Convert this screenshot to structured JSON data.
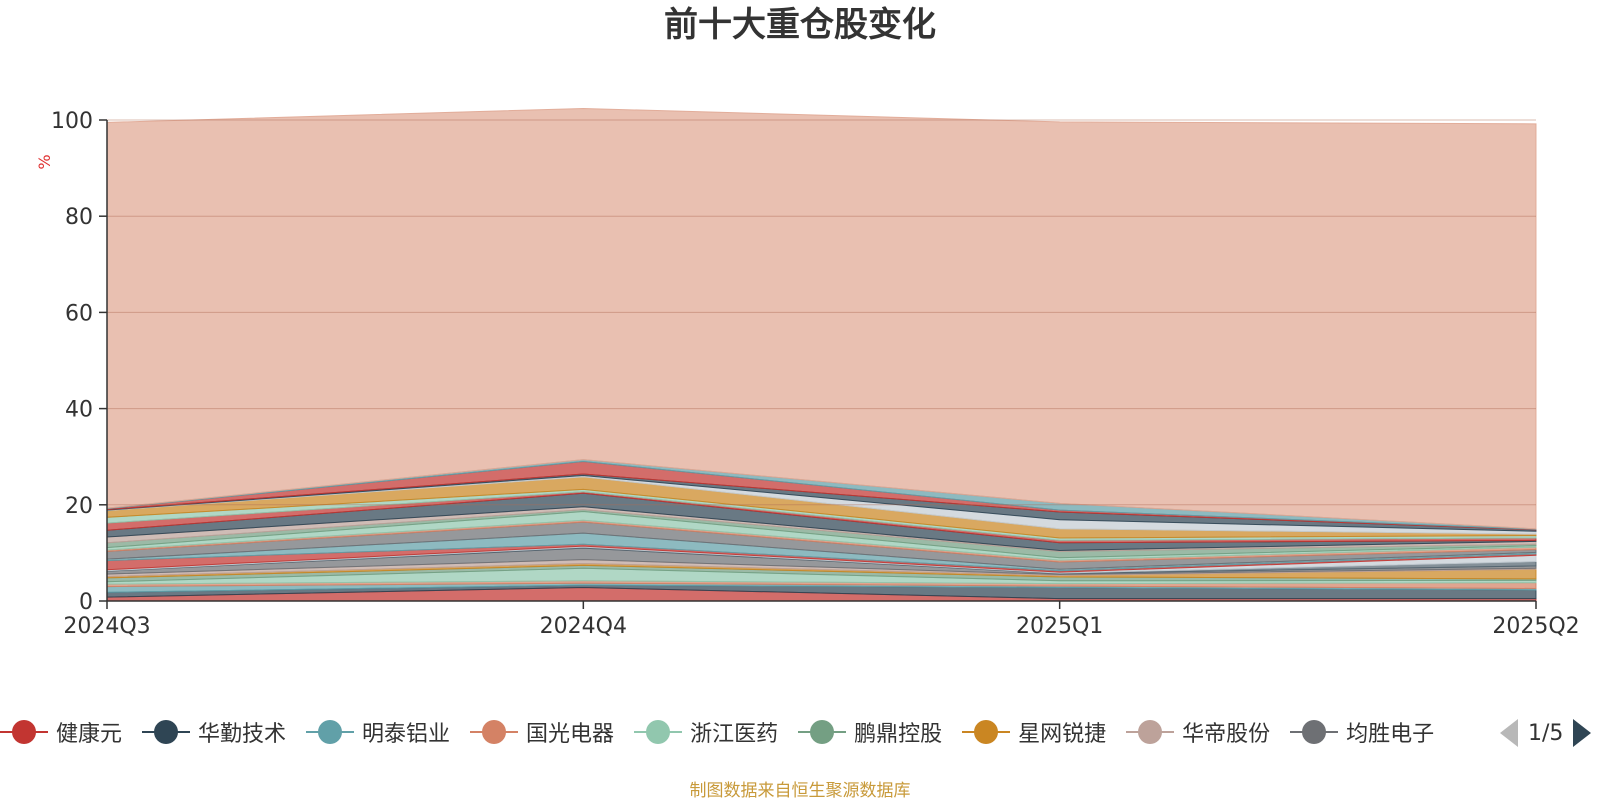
{
  "title": "前十大重仓股变化",
  "source_note": "制图数据来自恒生聚源数据库",
  "pager": {
    "text": "1/5"
  },
  "legend": [
    {
      "name": "健康元",
      "color": "#c23531"
    },
    {
      "name": "华勤技术",
      "color": "#2f4554"
    },
    {
      "name": "明泰铝业",
      "color": "#61a0a8"
    },
    {
      "name": "国光电器",
      "color": "#d48265"
    },
    {
      "name": "浙江医药",
      "color": "#91c7ae"
    },
    {
      "name": "鹏鼎控股",
      "color": "#749f83"
    },
    {
      "name": "星网锐捷",
      "color": "#ca8622"
    },
    {
      "name": "华帝股份",
      "color": "#bda29a"
    },
    {
      "name": "均胜电子",
      "color": "#6e7074"
    }
  ],
  "chart_data": {
    "type": "area",
    "stacked": true,
    "title": "前十大重仓股变化",
    "ylabel": "%",
    "ylim": [
      0,
      100
    ],
    "yticks": [
      "0",
      "20",
      "40",
      "60",
      "80",
      "100"
    ],
    "categories": [
      "2024Q3",
      "2024Q4",
      "2025Q1",
      "2025Q2"
    ],
    "grid": true,
    "legend_position": "bottom",
    "series": [
      {
        "name": "健康元",
        "color": "#c23531",
        "values": [
          0.8,
          2.8,
          0.5,
          0.5
        ]
      },
      {
        "name": "华勤技术",
        "color": "#2f4554",
        "values": [
          1.0,
          0.5,
          2.3,
          1.8
        ]
      },
      {
        "name": "明泰铝业",
        "color": "#61a0a8",
        "values": [
          1.2,
          0.4,
          0.3,
          0.3
        ]
      },
      {
        "name": "国光电器",
        "color": "#d48265",
        "values": [
          0.5,
          0.5,
          0.5,
          1.2
        ]
      },
      {
        "name": "浙江医药",
        "color": "#91c7ae",
        "values": [
          0.5,
          2.6,
          0.6,
          0.5
        ]
      },
      {
        "name": "鹏鼎控股",
        "color": "#749f83",
        "values": [
          0.8,
          0.6,
          0.8,
          0.3
        ]
      },
      {
        "name": "星网锐捷",
        "color": "#ca8622",
        "values": [
          0.3,
          0.4,
          0.3,
          2.0
        ]
      },
      {
        "name": "华帝股份",
        "color": "#bda29a",
        "values": [
          0.5,
          0.8,
          0.2,
          0.2
        ]
      },
      {
        "name": "均胜电子",
        "color": "#6e7074",
        "values": [
          0.6,
          2.4,
          0.2,
          0.5
        ]
      },
      {
        "name": "",
        "color": "#546570",
        "values": [
          0.1,
          0.2,
          0.1,
          0.9
        ]
      },
      {
        "name": "",
        "color": "#c4ccd3",
        "values": [
          0.2,
          0.2,
          0.2,
          1.3
        ]
      },
      {
        "name": "",
        "color": "#c23531",
        "values": [
          1.9,
          0.4,
          0.3,
          0.3
        ]
      },
      {
        "name": "",
        "color": "#61a0a8",
        "values": [
          0.3,
          2.3,
          0.3,
          0.3
        ]
      },
      {
        "name": "",
        "color": "#6e7074",
        "values": [
          1.6,
          2.3,
          1.5,
          0.6
        ]
      },
      {
        "name": "",
        "color": "#d48265",
        "values": [
          0.3,
          0.4,
          0.4,
          0.5
        ]
      },
      {
        "name": "",
        "color": "#91c7ae",
        "values": [
          0.5,
          1.8,
          0.5,
          0.3
        ]
      },
      {
        "name": "",
        "color": "#749f83",
        "values": [
          1.0,
          0.4,
          1.3,
          0.3
        ]
      },
      {
        "name": "",
        "color": "#bda29a",
        "values": [
          1.2,
          0.6,
          0.2,
          0.6
        ]
      },
      {
        "name": "",
        "color": "#2f4554",
        "values": [
          1.4,
          2.8,
          1.6,
          0.2
        ]
      },
      {
        "name": "",
        "color": "#c23531",
        "values": [
          1.5,
          0.3,
          0.5,
          0.5
        ]
      },
      {
        "name": "",
        "color": "#91c7ae",
        "values": [
          1.2,
          0.5,
          0.5,
          0.5
        ]
      },
      {
        "name": "",
        "color": "#ca8622",
        "values": [
          1.4,
          2.6,
          1.9,
          0.3
        ]
      },
      {
        "name": "",
        "color": "#c4ccd3",
        "values": [
          0.1,
          0.3,
          1.9,
          0.6
        ]
      },
      {
        "name": "",
        "color": "#2f4554",
        "values": [
          0.1,
          0.3,
          1.6,
          0.3
        ]
      },
      {
        "name": "",
        "color": "#c23531",
        "values": [
          0.2,
          2.6,
          0.4,
          0.1
        ]
      },
      {
        "name": "",
        "color": "#61a0a8",
        "values": [
          0.1,
          0.4,
          1.4,
          0.1
        ]
      },
      {
        "name": "",
        "color": "#e0a793",
        "values": [
          80.2,
          73.0,
          79.3,
          84.2
        ]
      }
    ]
  }
}
